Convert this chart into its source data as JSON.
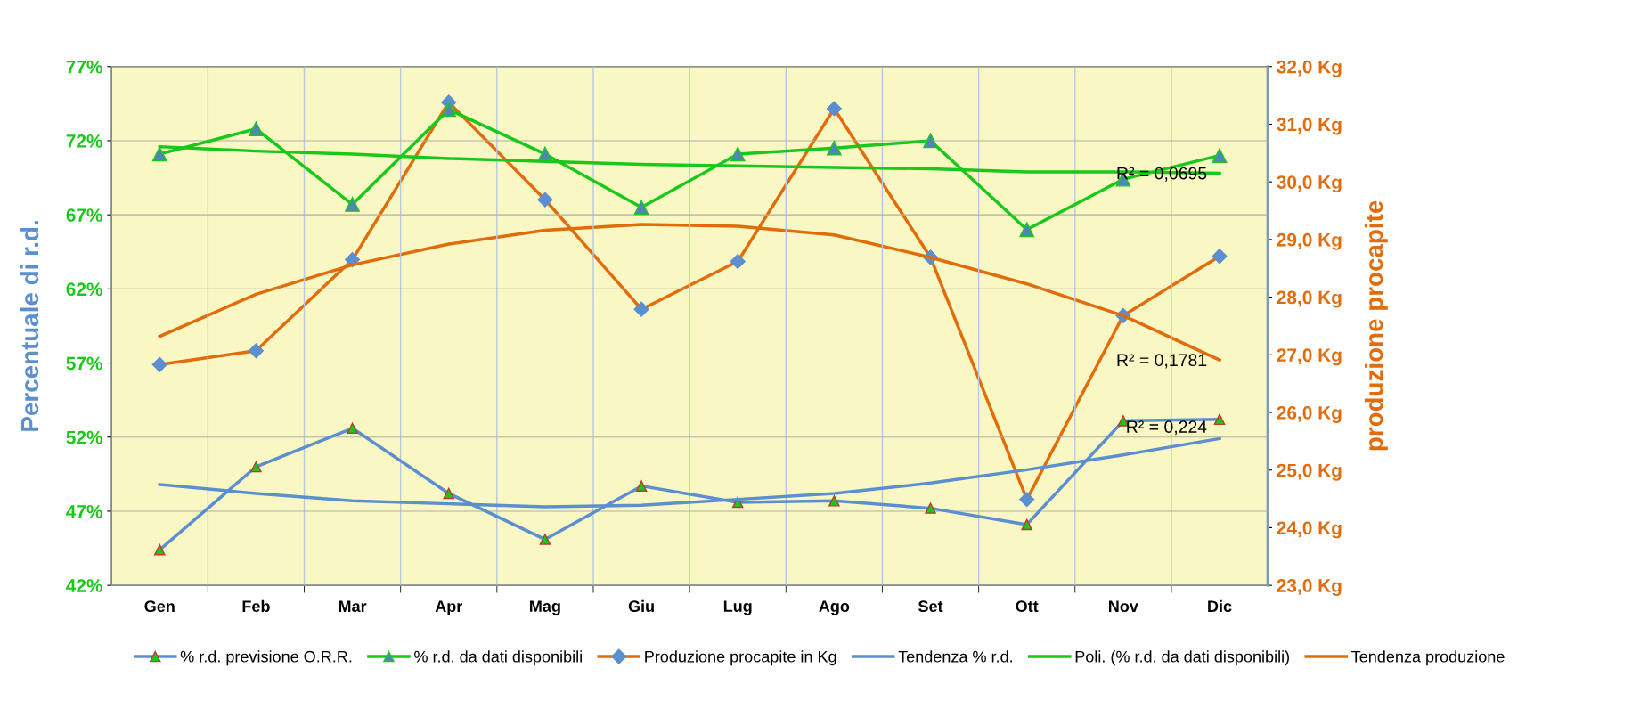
{
  "chart_data": {
    "type": "line",
    "categories": [
      "Gen",
      "Feb",
      "Mar",
      "Apr",
      "Mag",
      "Giu",
      "Lug",
      "Ago",
      "Set",
      "Ott",
      "Nov",
      "Dic"
    ],
    "ylabel": "Percentuale di r.d.",
    "y2label": "produzione procapite",
    "ylim": [
      42,
      77
    ],
    "yticks": [
      {
        "value": 42,
        "label": "42%"
      },
      {
        "value": 47,
        "label": "47%"
      },
      {
        "value": 52,
        "label": "52%"
      },
      {
        "value": 57,
        "label": "57%"
      },
      {
        "value": 62,
        "label": "62%"
      },
      {
        "value": 67,
        "label": "67%"
      },
      {
        "value": 72,
        "label": "72%"
      },
      {
        "value": 77,
        "label": "77%"
      }
    ],
    "y2lim": [
      23,
      32
    ],
    "y2ticks": [
      {
        "value": 23,
        "label": "23,0 Kg"
      },
      {
        "value": 24,
        "label": "24,0 Kg"
      },
      {
        "value": 25,
        "label": "25,0 Kg"
      },
      {
        "value": 26,
        "label": "26,0 Kg"
      },
      {
        "value": 27,
        "label": "27,0 Kg"
      },
      {
        "value": 28,
        "label": "28,0 Kg"
      },
      {
        "value": 29,
        "label": "29,0 Kg"
      },
      {
        "value": 30,
        "label": "30,0 Kg"
      },
      {
        "value": 31,
        "label": "31,0 Kg"
      },
      {
        "value": 32,
        "label": "32,0 Kg"
      }
    ],
    "series": [
      {
        "name": "% r.d. previsione O.R.R.",
        "color": "#5b8fcf",
        "marker": "triangle",
        "values": [
          44.4,
          50.0,
          52.6,
          48.2,
          45.1,
          48.7,
          47.6,
          47.7,
          47.2,
          46.1,
          53.1,
          53.2
        ]
      },
      {
        "name": "% r.d. da dati disponibili",
        "color": "#19c819",
        "marker": "triangle",
        "values": [
          71.1,
          72.8,
          67.7,
          74.1,
          71.1,
          67.5,
          71.1,
          71.5,
          72.0,
          66.0,
          69.4,
          71.0
        ]
      },
      {
        "name": "Produzione procapite in Kg",
        "color": "#e26b0a",
        "marker": "diamond",
        "axis": "y2",
        "values": [
          26.83,
          27.07,
          28.65,
          31.38,
          29.69,
          27.79,
          28.62,
          31.27,
          28.69,
          24.49,
          27.68,
          28.71
        ]
      },
      {
        "name": "Tendenza % r.d.",
        "color": "#5b8fcf",
        "marker": "none",
        "values": [
          48.8,
          48.2,
          47.7,
          47.5,
          47.3,
          47.4,
          47.8,
          48.2,
          48.9,
          49.8,
          50.8,
          51.9
        ]
      },
      {
        "name": "Poli. (% r.d. da dati disponibili)",
        "color": "#19c819",
        "marker": "none",
        "values": [
          71.6,
          71.3,
          71.1,
          70.8,
          70.6,
          70.4,
          70.3,
          70.2,
          70.1,
          69.9,
          69.9,
          69.8
        ]
      },
      {
        "name": "Tendenza produzione",
        "color": "#e26b0a",
        "marker": "none",
        "axis": "y2",
        "values": [
          27.32,
          28.05,
          28.56,
          28.92,
          29.16,
          29.26,
          29.23,
          29.08,
          28.69,
          28.23,
          27.68,
          26.91
        ]
      }
    ],
    "annotations": [
      {
        "text": "R² = 0,0695",
        "x": "Dic",
        "y": 69.7
      },
      {
        "text": "R² = 0,1781",
        "x": "Dic",
        "y": 57.1
      },
      {
        "text": "R² = 0,224",
        "x": "Dic",
        "y": 52.6
      }
    ],
    "grid": true,
    "legend": "bottom"
  }
}
